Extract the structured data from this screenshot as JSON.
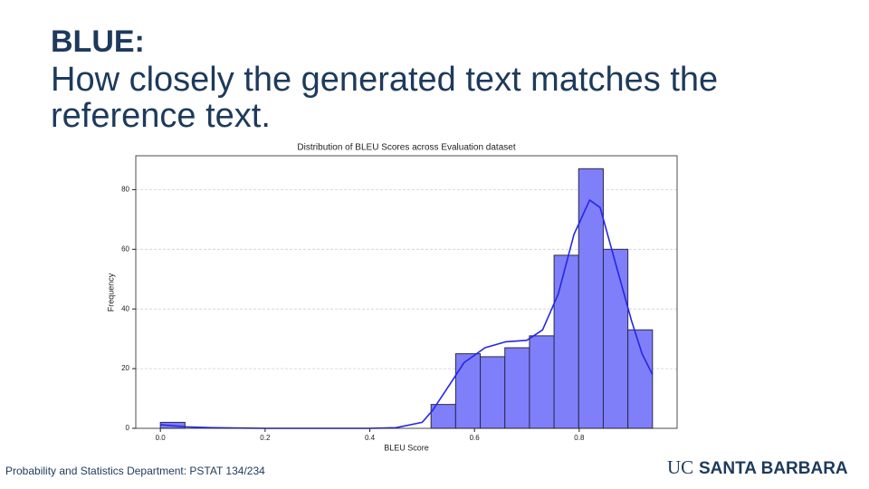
{
  "heading": {
    "title": "BLUE:",
    "lines": [
      "How closely the generated text matches the",
      "reference text."
    ]
  },
  "footer": {
    "note": "Probability and Statistics Department: PSTAT 134/234",
    "logo_uc": "UC",
    "logo_name": "SANTA BARBARA"
  },
  "chart_data": {
    "type": "histogram",
    "title": "Distribution of BLEU Scores across Evaluation dataset",
    "x_label": "BLEU Score",
    "y_label": "Frequency",
    "bins": [
      0,
      0.047,
      0.094,
      0.141,
      0.188,
      0.235,
      0.282,
      0.329,
      0.376,
      0.423,
      0.47,
      0.517,
      0.564,
      0.611,
      0.658,
      0.705,
      0.752,
      0.799,
      0.846,
      0.893,
      0.94
    ],
    "values": [
      2,
      0,
      0,
      0,
      0,
      0,
      0,
      0,
      0,
      0,
      0,
      8,
      25,
      24,
      27,
      31,
      58,
      87,
      60,
      33
    ],
    "color": "#7f7ffa",
    "edge_color": "#2a2a4a",
    "kde": {
      "color": "#2626e6",
      "x": [
        0,
        0.05,
        0.1,
        0.2,
        0.3,
        0.4,
        0.45,
        0.5,
        0.52,
        0.55,
        0.58,
        0.62,
        0.66,
        0.7,
        0.73,
        0.76,
        0.79,
        0.82,
        0.84,
        0.87,
        0.9,
        0.92,
        0.94
      ],
      "values": [
        1.2,
        0.5,
        0.2,
        0,
        0,
        0,
        0.2,
        2,
        6,
        14,
        22,
        27,
        29,
        29.5,
        33,
        45,
        65,
        76.5,
        74,
        55,
        36,
        25,
        18
      ]
    },
    "xlim": [
      -0.047,
      0.987
    ],
    "ylim": [
      0,
      91.35
    ],
    "xticks": [
      {
        "value": 0,
        "label": "0.0"
      },
      0.2,
      0.4,
      0.6,
      0.8
    ],
    "yticks": [
      0,
      20,
      40,
      60,
      80
    ],
    "grid": "y"
  }
}
